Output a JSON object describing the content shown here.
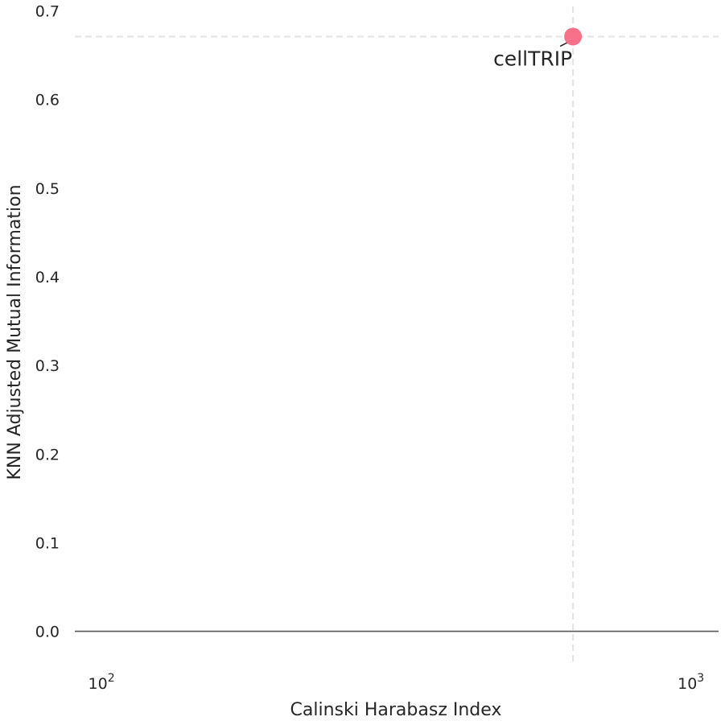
{
  "chart_data": {
    "type": "scatter",
    "xlabel": "Calinski Harabasz Index",
    "ylabel": "KNN Adjusted Mutual Information",
    "xscale": "log",
    "xlim": [
      89,
      1100
    ],
    "ylim": [
      -0.034,
      0.705
    ],
    "grid": false,
    "x_ticks": [
      {
        "value": 100,
        "base": "10",
        "exp": "2"
      },
      {
        "value": 1000,
        "base": "10",
        "exp": "3"
      }
    ],
    "y_ticks": [
      {
        "value": 0.0,
        "label": "0.0"
      },
      {
        "value": 0.1,
        "label": "0.1"
      },
      {
        "value": 0.2,
        "label": "0.2"
      },
      {
        "value": 0.3,
        "label": "0.3"
      },
      {
        "value": 0.4,
        "label": "0.4"
      },
      {
        "value": 0.5,
        "label": "0.5"
      },
      {
        "value": 0.6,
        "label": "0.6"
      },
      {
        "value": 0.7,
        "label": "0.7"
      }
    ],
    "zero_line": 0.0,
    "reference_lines": {
      "x": 623,
      "y": 0.671
    },
    "points": [
      {
        "label": "cellTRIP",
        "x": 623,
        "y": 0.671,
        "color": "#f7718a"
      }
    ],
    "colors": {
      "point": "#f7718a",
      "text": "#262626",
      "reference": "#e5e5e5",
      "zero_line": "#595959"
    }
  }
}
